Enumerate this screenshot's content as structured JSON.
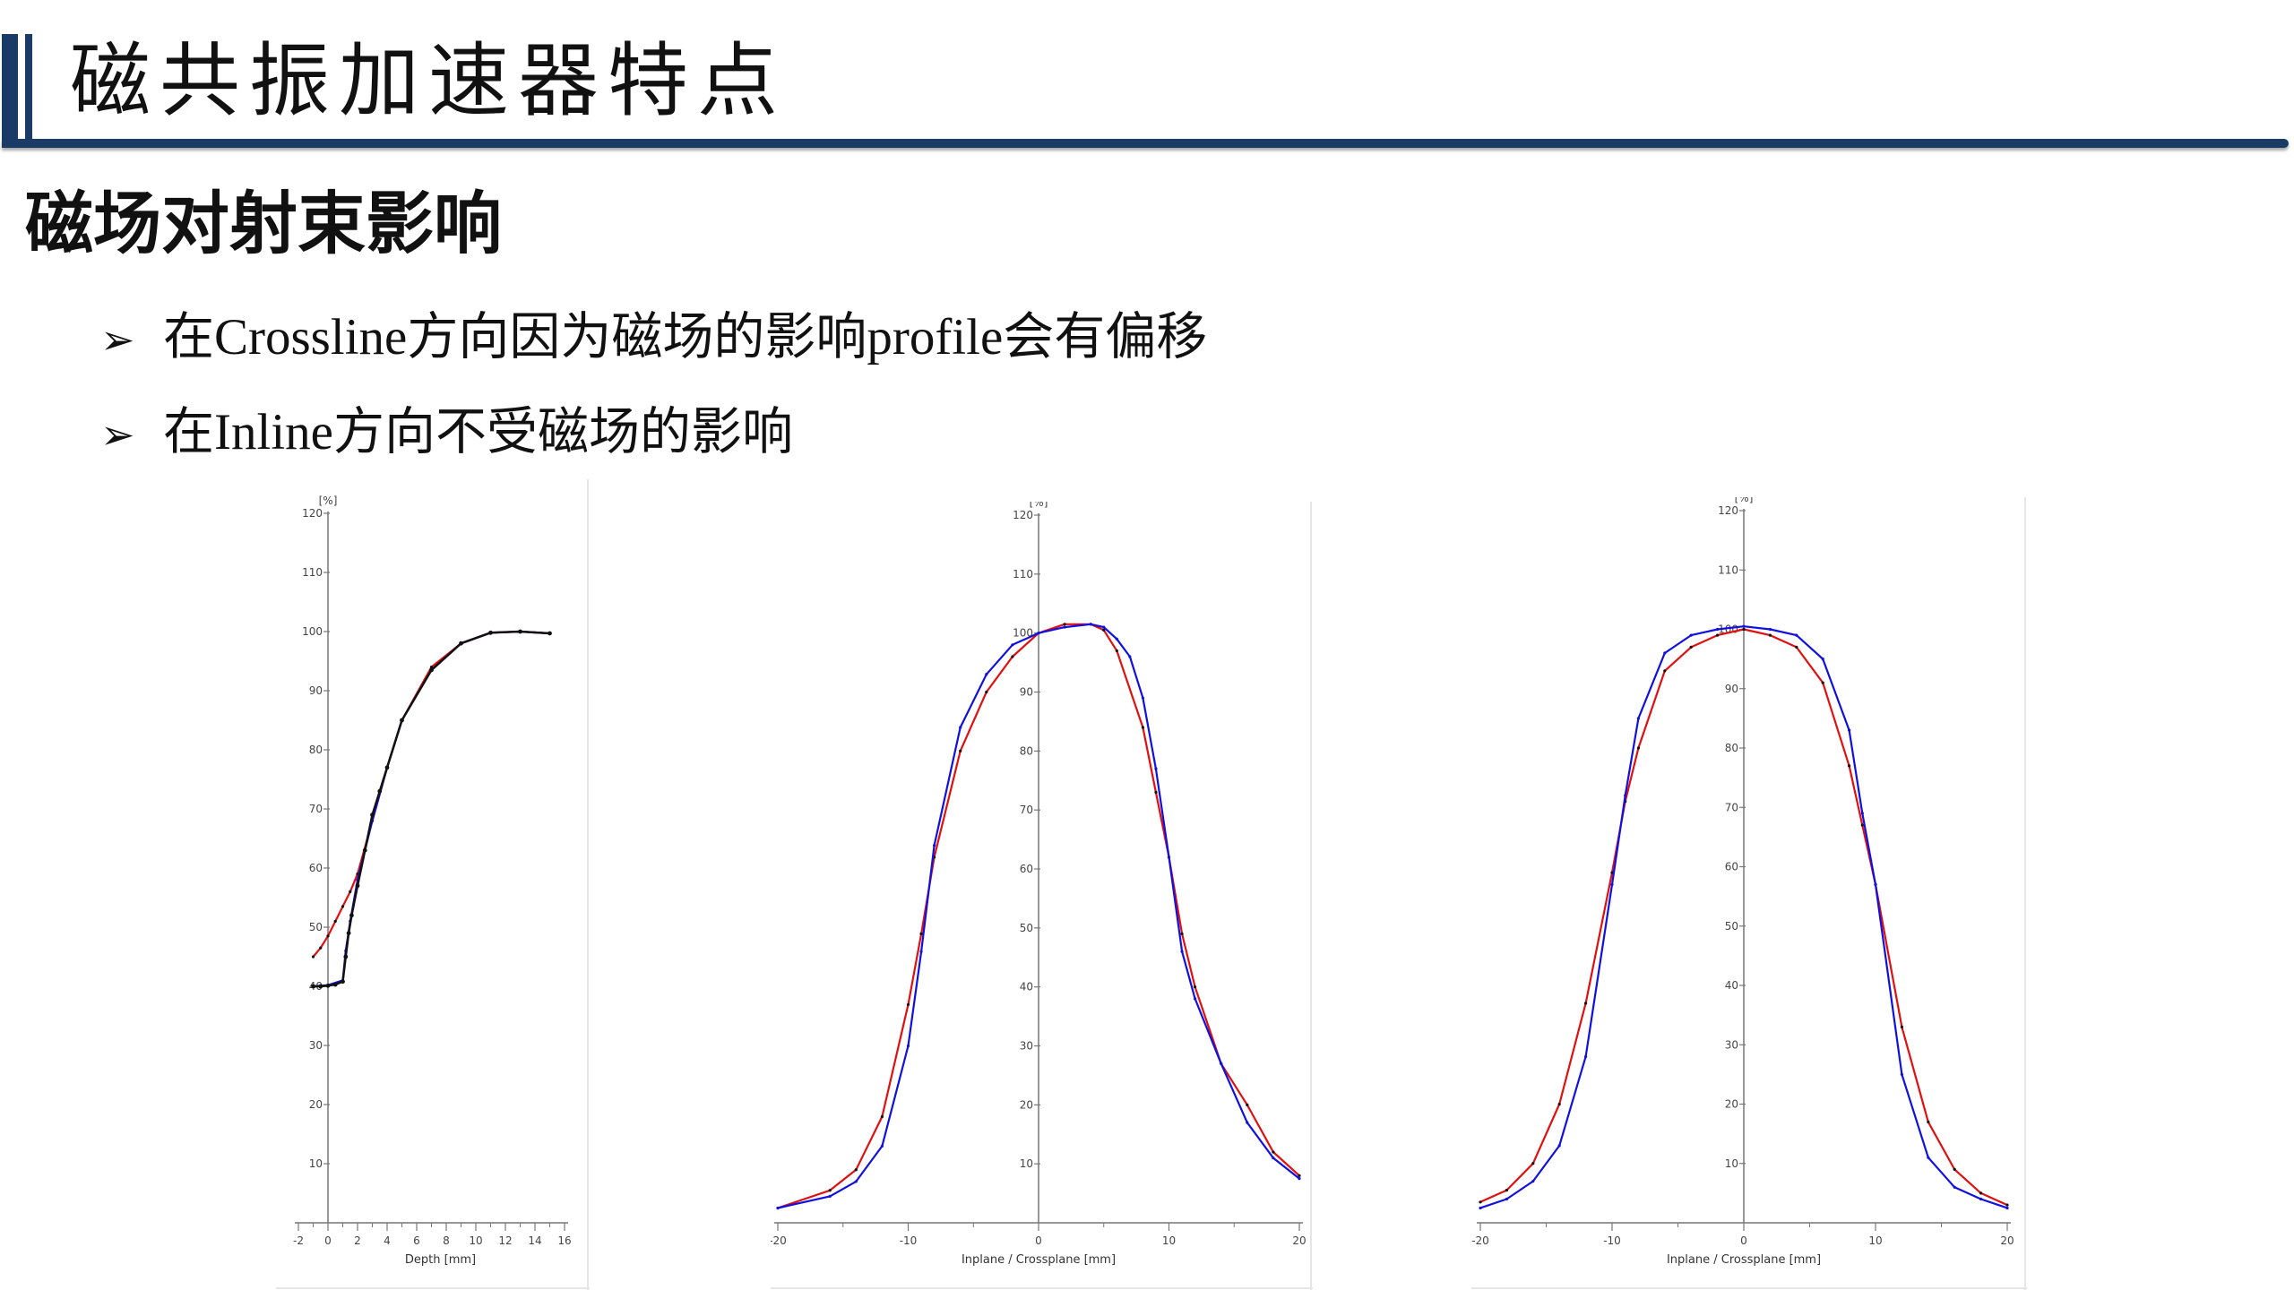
{
  "slide": {
    "title": "磁共振加速器特点",
    "section": "磁场对射束影响",
    "bullets": [
      "在Crossline方向因为磁场的影响profile会有偏移",
      "在Inline方向不受磁场的影响"
    ],
    "bullet_icon": "arrow-bullet-icon",
    "colors": {
      "accent": "#1a3b66",
      "red_series": "#e01010",
      "blue_series": "#1010e0"
    }
  },
  "chart_data": [
    {
      "type": "line",
      "unit_label": "[%]",
      "xlabel": "Depth [mm]",
      "xlim": [
        -2,
        16
      ],
      "ylim": [
        0,
        120
      ],
      "xticks": [
        -2,
        0,
        2,
        4,
        6,
        8,
        10,
        12,
        14,
        16
      ],
      "yticks": [
        10,
        20,
        30,
        40,
        50,
        60,
        70,
        80,
        90,
        100,
        110,
        120
      ],
      "series": [
        {
          "color": "#e01010",
          "x": [
            -1,
            -0.5,
            0,
            0.5,
            1,
            1.5,
            2,
            3,
            4,
            5,
            7,
            9,
            11,
            13,
            15
          ],
          "y": [
            45,
            46.5,
            48.5,
            51,
            53.5,
            56,
            59,
            68,
            77,
            85,
            94,
            98,
            99.8,
            100,
            99.7
          ]
        },
        {
          "color": "#1010e0",
          "x": [
            -1,
            0,
            1,
            1.2,
            1.5,
            2,
            3,
            4,
            5,
            7,
            9,
            11,
            13,
            15
          ],
          "y": [
            40,
            40.2,
            41,
            46,
            51,
            58,
            68,
            77,
            85,
            93.5,
            98,
            99.8,
            100,
            99.7
          ]
        },
        {
          "color": "#111111",
          "x": [
            -1,
            -0.5,
            0,
            0.5,
            1,
            1.2,
            1.4,
            1.6,
            2,
            2.5,
            3,
            3.5,
            4,
            5,
            7,
            9,
            11,
            13,
            15
          ],
          "y": [
            40,
            40,
            40.1,
            40.3,
            40.8,
            45,
            49,
            52,
            57,
            63,
            69,
            73,
            77,
            85,
            93.5,
            98,
            99.8,
            100,
            99.7
          ]
        }
      ]
    },
    {
      "type": "line",
      "unit_label": "[%]",
      "xlabel": "Inplane / Crossplane [mm]",
      "xlim": [
        -20,
        20
      ],
      "ylim": [
        0,
        120
      ],
      "xticks": [
        -20,
        -10,
        0,
        10,
        20
      ],
      "yticks": [
        10,
        20,
        30,
        40,
        50,
        60,
        70,
        80,
        90,
        100,
        110,
        120
      ],
      "series": [
        {
          "color": "#e01010",
          "x": [
            -20,
            -16,
            -14,
            -12,
            -10,
            -9,
            -8,
            -6,
            -4,
            -2,
            0,
            2,
            4,
            5,
            6,
            8,
            9,
            10,
            11,
            12,
            14,
            16,
            18,
            20
          ],
          "y": [
            2.5,
            5.5,
            9,
            18,
            37,
            49,
            62,
            80,
            90,
            96,
            100,
            101.5,
            101.5,
            100.5,
            97,
            84,
            73,
            62,
            49,
            40,
            27,
            20,
            12,
            8
          ]
        },
        {
          "color": "#1010e0",
          "x": [
            -20,
            -16,
            -14,
            -12,
            -10,
            -9,
            -8,
            -6,
            -4,
            -2,
            0,
            2,
            4,
            5,
            6,
            7,
            8,
            9,
            10,
            11,
            12,
            14,
            16,
            18,
            20
          ],
          "y": [
            2.5,
            4.5,
            7,
            13,
            30,
            46,
            64,
            84,
            93,
            98,
            100,
            101,
            101.5,
            101,
            99,
            96,
            89,
            77,
            62,
            46,
            38,
            27,
            17,
            11,
            7.5
          ]
        }
      ]
    },
    {
      "type": "line",
      "unit_label": "[%]",
      "xlabel": "Inplane / Crossplane [mm]",
      "xlim": [
        -20,
        20
      ],
      "ylim": [
        0,
        120
      ],
      "xticks": [
        -20,
        -10,
        0,
        10,
        20
      ],
      "yticks": [
        10,
        20,
        30,
        40,
        50,
        60,
        70,
        80,
        90,
        100,
        110,
        120
      ],
      "series": [
        {
          "color": "#e01010",
          "x": [
            -20,
            -18,
            -16,
            -14,
            -12,
            -10,
            -9,
            -8,
            -6,
            -4,
            -2,
            0,
            2,
            4,
            6,
            8,
            9,
            10,
            12,
            14,
            16,
            18,
            20
          ],
          "y": [
            3.5,
            5.5,
            10,
            20,
            37,
            59,
            71,
            80,
            93,
            97,
            99,
            100,
            99,
            97,
            91,
            77,
            67,
            57,
            33,
            17,
            9,
            5,
            3
          ]
        },
        {
          "color": "#1010e0",
          "x": [
            -20,
            -18,
            -16,
            -14,
            -12,
            -10,
            -9,
            -8,
            -6,
            -4,
            -2,
            0,
            2,
            4,
            6,
            8,
            9,
            10,
            12,
            14,
            16,
            18,
            20
          ],
          "y": [
            2.5,
            4,
            7,
            13,
            28,
            57,
            72,
            85,
            96,
            99,
            100,
            100.5,
            100,
            99,
            95,
            83,
            69,
            57,
            25,
            11,
            6,
            4,
            2.5
          ]
        }
      ]
    }
  ]
}
